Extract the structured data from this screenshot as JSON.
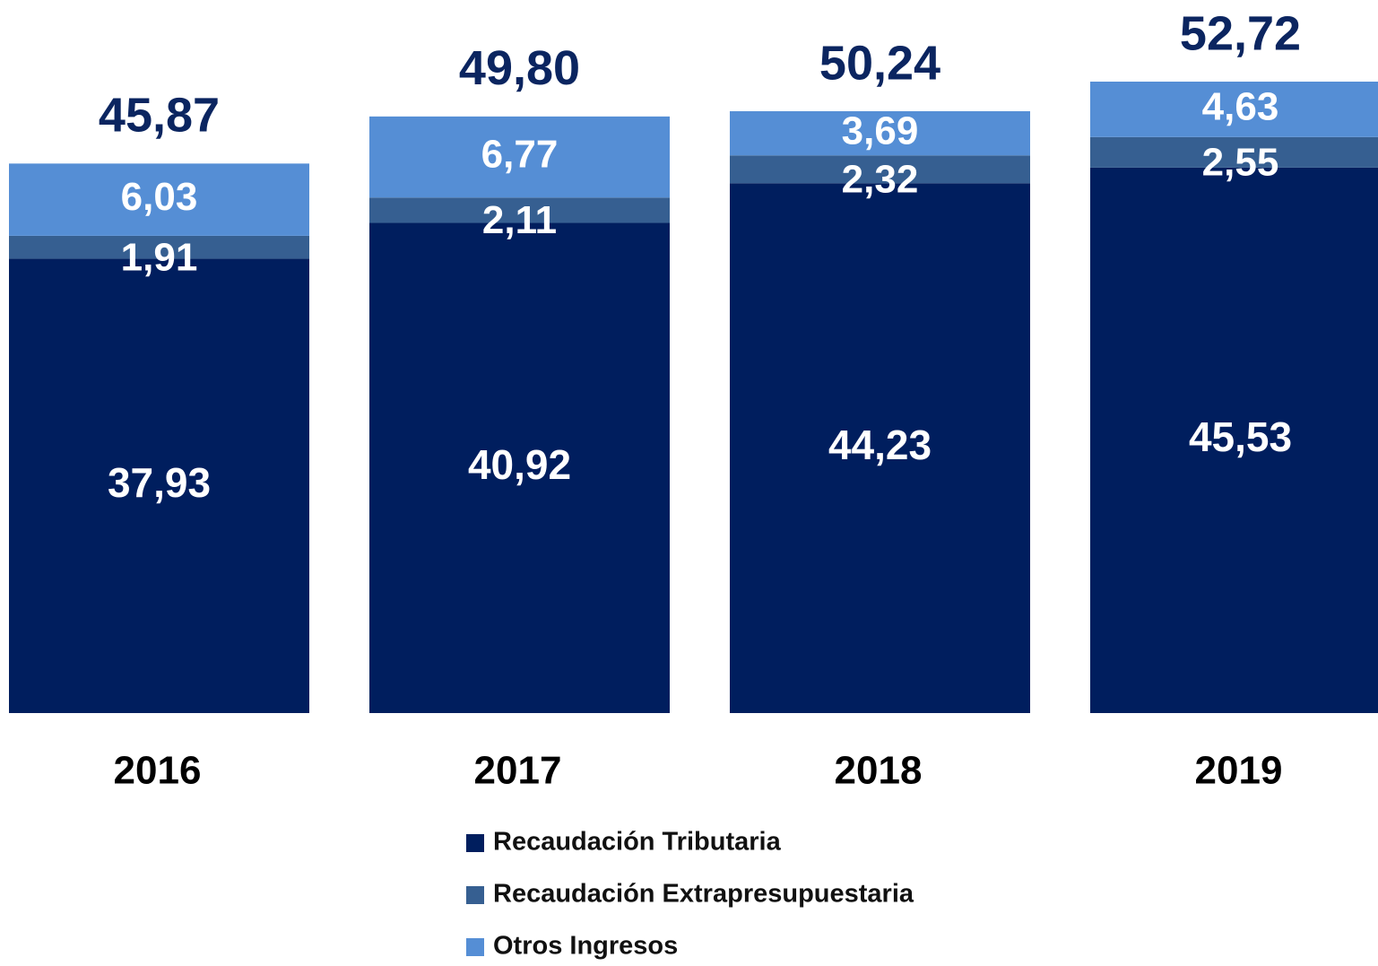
{
  "chart_data": {
    "type": "stacked_bar",
    "categories": [
      "2016",
      "2017",
      "2018",
      "2019"
    ],
    "series": [
      {
        "name": "Recaudación Tributaria",
        "color": "#001e5e",
        "values": [
          37.93,
          40.92,
          44.23,
          45.53
        ],
        "value_labels": [
          "37,93",
          "40,92",
          "44,23",
          "45,53"
        ]
      },
      {
        "name": "Recaudación Extrapresupuestaria",
        "color": "#365f91",
        "values": [
          1.91,
          2.11,
          2.32,
          2.55
        ],
        "value_labels": [
          "1,91",
          "2,11",
          "2,32",
          "2,55"
        ]
      },
      {
        "name": "Otros Ingresos",
        "color": "#558ed5",
        "values": [
          6.03,
          6.77,
          3.69,
          4.63
        ],
        "value_labels": [
          "6,03",
          "6,77",
          "3,69",
          "4,63"
        ]
      }
    ],
    "totals": [
      45.87,
      49.8,
      50.24,
      52.72
    ],
    "total_labels": [
      "45,87",
      "49,80",
      "50,24",
      "52,72"
    ]
  }
}
